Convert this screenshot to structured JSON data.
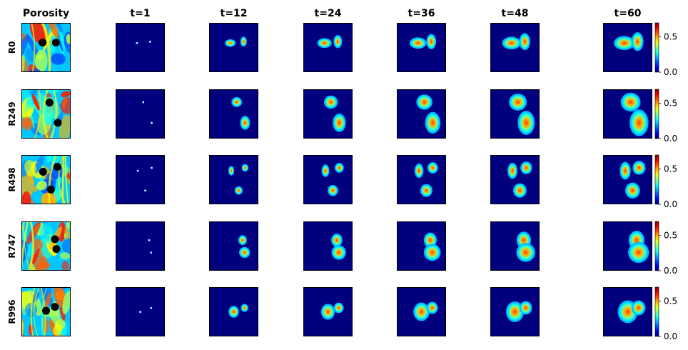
{
  "chart_data": {
    "type": "heatmap",
    "layout": "grid",
    "column_titles": [
      "Porosity",
      "t=1",
      "t=12",
      "t=24",
      "t=36",
      "t=48",
      "t=60"
    ],
    "row_labels": [
      "R0",
      "R249",
      "R498",
      "R747",
      "R996"
    ],
    "colormap": "jet",
    "background_color": "#00007f",
    "colorbar": {
      "vmin": 0.0,
      "vmax": 0.7,
      "ticks": [
        0.0,
        0.5
      ],
      "tick_labels": [
        "0.0",
        "0.5"
      ]
    },
    "timesteps": [
      1,
      12,
      24,
      36,
      48,
      60
    ],
    "growth": [
      0.12,
      0.5,
      0.68,
      0.8,
      0.9,
      1.0
    ],
    "realizations": [
      {
        "name": "R0",
        "wells": [
          [
            0.43,
            0.4
          ],
          [
            0.7,
            0.4
          ]
        ],
        "plumes": [
          {
            "cx": 0.43,
            "cy": 0.41,
            "rx": 0.2,
            "ry": 0.13
          },
          {
            "cx": 0.7,
            "cy": 0.38,
            "rx": 0.11,
            "ry": 0.18
          }
        ]
      },
      {
        "name": "R249",
        "wells": [
          [
            0.57,
            0.27
          ],
          [
            0.74,
            0.68
          ]
        ],
        "plumes": [
          {
            "cx": 0.56,
            "cy": 0.26,
            "rx": 0.19,
            "ry": 0.18
          },
          {
            "cx": 0.73,
            "cy": 0.68,
            "rx": 0.18,
            "ry": 0.26
          }
        ]
      },
      {
        "name": "R498",
        "wells": [
          [
            0.44,
            0.34
          ],
          [
            0.73,
            0.24
          ],
          [
            0.6,
            0.7
          ]
        ],
        "plumes": [
          {
            "cx": 0.45,
            "cy": 0.32,
            "rx": 0.1,
            "ry": 0.17
          },
          {
            "cx": 0.73,
            "cy": 0.26,
            "rx": 0.12,
            "ry": 0.13
          },
          {
            "cx": 0.6,
            "cy": 0.72,
            "rx": 0.14,
            "ry": 0.15
          }
        ]
      },
      {
        "name": "R747",
        "wells": [
          [
            0.68,
            0.36
          ],
          [
            0.71,
            0.56
          ]
        ],
        "plumes": [
          {
            "cx": 0.68,
            "cy": 0.38,
            "rx": 0.15,
            "ry": 0.18
          },
          {
            "cx": 0.72,
            "cy": 0.63,
            "rx": 0.2,
            "ry": 0.2
          }
        ]
      },
      {
        "name": "R996",
        "wells": [
          [
            0.5,
            0.48
          ],
          [
            0.68,
            0.4
          ]
        ],
        "plumes": [
          {
            "cx": 0.5,
            "cy": 0.5,
            "rx": 0.19,
            "ry": 0.22
          },
          {
            "cx": 0.72,
            "cy": 0.42,
            "rx": 0.13,
            "ry": 0.14
          }
        ]
      }
    ]
  }
}
